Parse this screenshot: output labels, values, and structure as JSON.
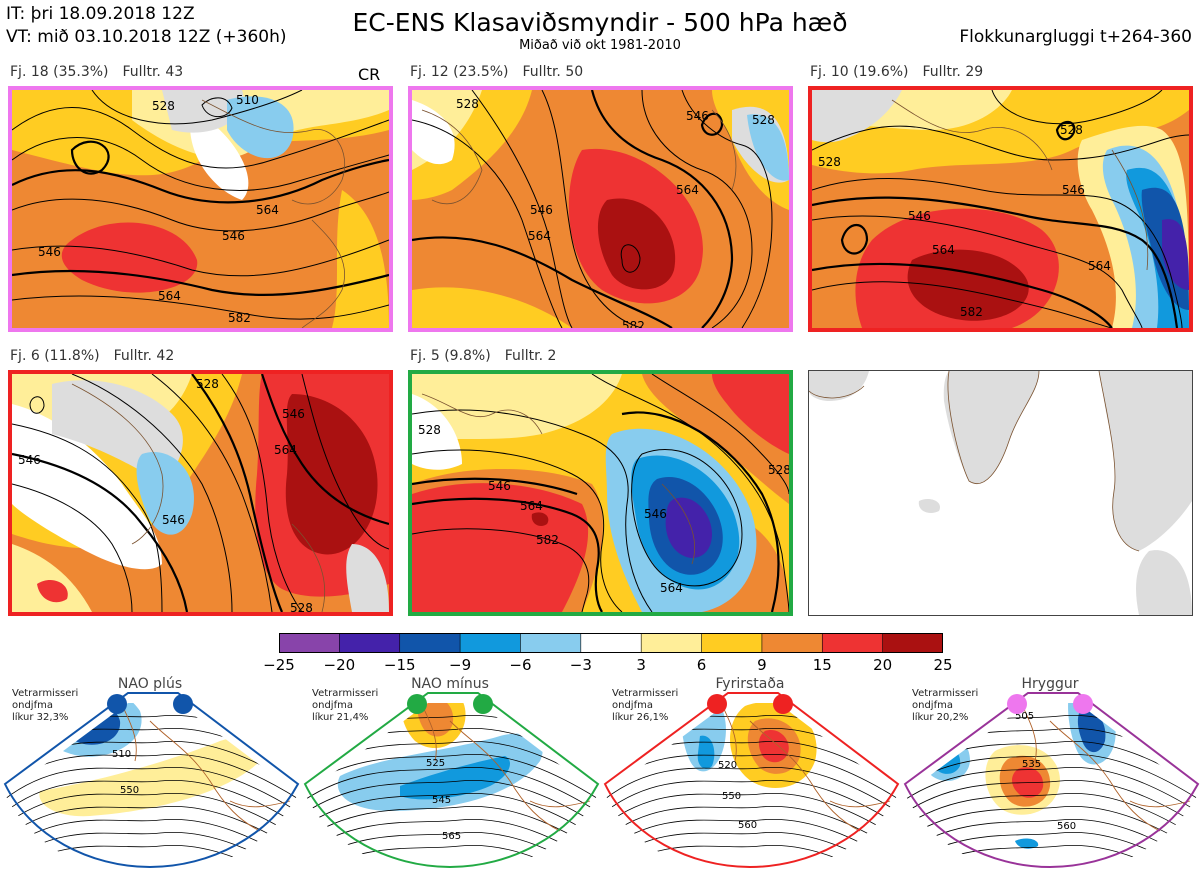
{
  "header": {
    "it": "IT: þri 18.09.2018 12Z",
    "vt": "VT: mið 03.10.2018 12Z  (+360h)",
    "title": "EC-ENS Klasaviðsmyndir - 500 hPa hæð",
    "subtitle": "Miðað við okt 1981-2010",
    "window": "Flokkunargluggi t+264-360"
  },
  "panels": [
    {
      "label": "Fj. 18 (35.3%)",
      "members": "Fulltr. 43",
      "border": "#ee77ee",
      "extra": "CR",
      "contours": [
        "546",
        "564",
        "582",
        "528",
        "510",
        "546",
        "564"
      ]
    },
    {
      "label": "Fj. 12 (23.5%)",
      "members": "Fulltr. 50",
      "border": "#ee77ee",
      "contours": [
        "528",
        "546",
        "564",
        "582",
        "546",
        "564",
        "528"
      ]
    },
    {
      "label": "Fj. 10 (19.6%)",
      "members": "Fulltr. 29",
      "border": "#ee2222",
      "contours": [
        "546",
        "564",
        "582",
        "528",
        "546",
        "564",
        "528"
      ]
    },
    {
      "label": "Fj. 6 (11.8%)",
      "members": "Fulltr. 42",
      "border": "#ee2222",
      "contours": [
        "546",
        "564",
        "546",
        "528",
        "546",
        "528"
      ]
    },
    {
      "label": "Fj. 5 (9.8%)",
      "members": "Fulltr. 2",
      "border": "#22aa44",
      "contours": [
        "546",
        "564",
        "582",
        "546",
        "564",
        "528",
        "528"
      ]
    }
  ],
  "colorbar": {
    "colors": [
      "#8844aa",
      "#4422aa",
      "#1155aa",
      "#1199dd",
      "#88ccee",
      "#ffffff",
      "#ffee99",
      "#ffcc22",
      "#ee8833",
      "#ee3333",
      "#aa1111"
    ],
    "ticks": [
      "−25",
      "−20",
      "−15",
      "−9",
      "−6",
      "−3",
      "3",
      "6",
      "9",
      "15",
      "20",
      "25"
    ]
  },
  "regimes": [
    {
      "name": "NAO plús",
      "note": [
        "Vetrarmisseri",
        "ondjfma",
        "líkur 32,3%"
      ],
      "color": "#1155aa",
      "labels": [
        "510",
        "550"
      ]
    },
    {
      "name": "NAO mínus",
      "note": [
        "Vetrarmisseri",
        "ondjfma",
        "líkur 21,4%"
      ],
      "color": "#22aa44",
      "labels": [
        "525",
        "545",
        "565"
      ]
    },
    {
      "name": "Fyrirstaða",
      "note": [
        "Vetrarmisseri",
        "ondjfma",
        "líkur 26,1%"
      ],
      "color": "#ee2222",
      "labels": [
        "520",
        "550",
        "560"
      ]
    },
    {
      "name": "Hryggur",
      "note": [
        "Vetrarmisseri",
        "ondjfma",
        "líkur 20,2%"
      ],
      "color": "#993399",
      "labels": [
        "505",
        "535",
        "560"
      ]
    }
  ]
}
